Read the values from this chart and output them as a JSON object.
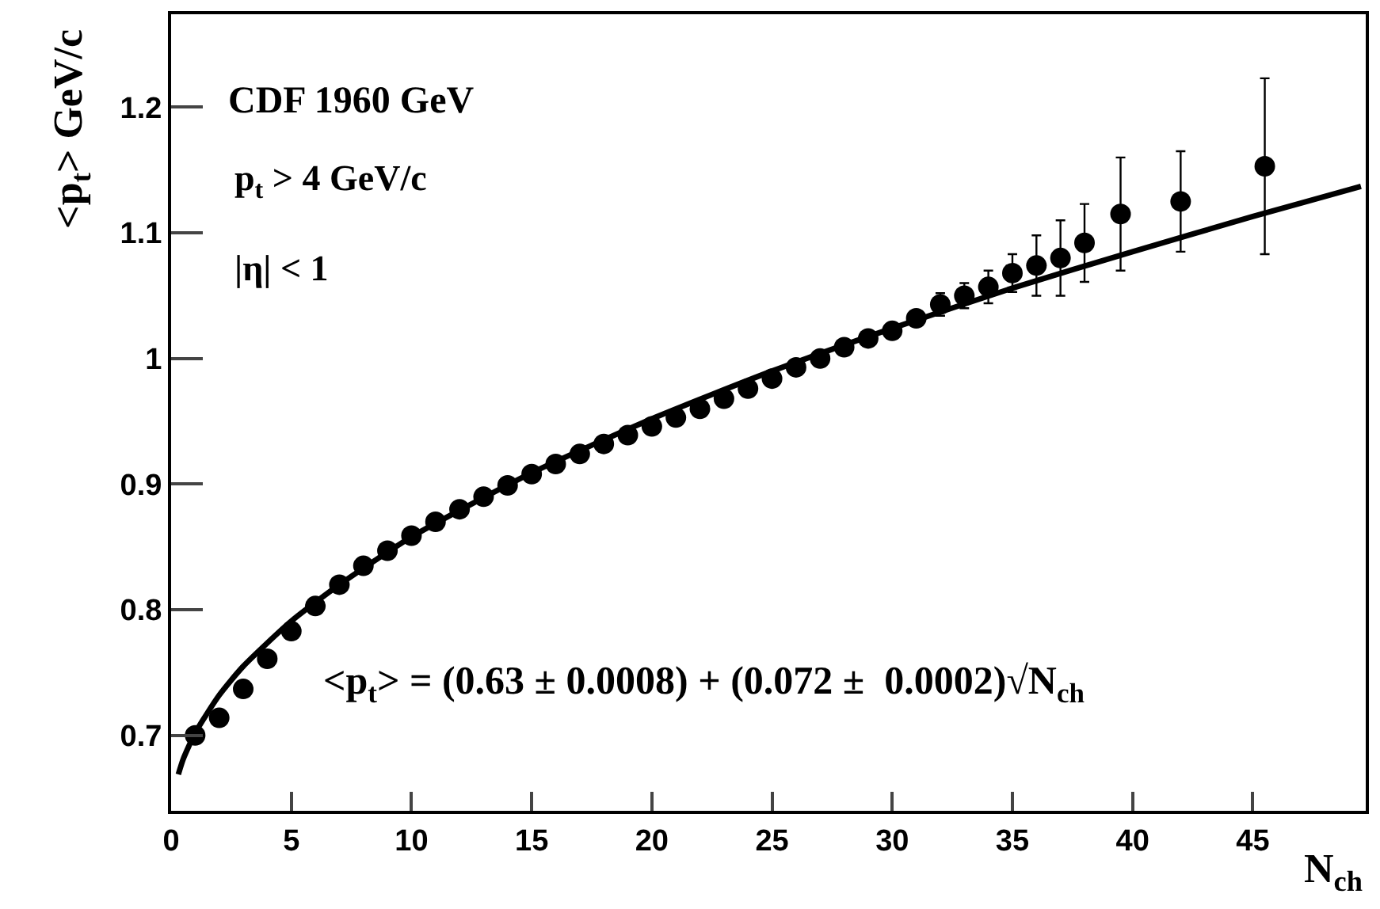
{
  "chart_data": {
    "type": "scatter",
    "xlabel": "N$_{ch}$",
    "ylabel": "<p$_{t}$> GeV/c",
    "annotations": [
      "CDF 1960 GeV",
      "p$_{t}$ > 4 GeV/c",
      "|η| < 1",
      "<p$_{t}$> = (0.63 ± 0.0008) + (0.072 ±  0.0002)√N$_{ch}$"
    ],
    "series": [
      {
        "color": "#000000",
        "marker": "circle",
        "x": [
          1,
          2,
          3,
          4,
          5,
          6,
          7,
          8,
          9,
          10,
          11,
          12,
          13,
          14,
          15,
          16,
          17,
          18,
          19,
          20,
          21,
          22,
          23,
          24,
          25,
          26,
          27,
          28,
          29,
          30,
          31,
          32,
          33,
          34,
          35,
          36,
          37,
          38,
          39.5,
          42,
          45.5
        ],
        "values": [
          0.7,
          0.714,
          0.737,
          0.761,
          0.783,
          0.803,
          0.82,
          0.835,
          0.847,
          0.859,
          0.87,
          0.88,
          0.89,
          0.899,
          0.908,
          0.916,
          0.924,
          0.932,
          0.939,
          0.946,
          0.953,
          0.96,
          0.968,
          0.976,
          0.984,
          0.993,
          1.0,
          1.009,
          1.016,
          1.022,
          1.032,
          1.043,
          1.05,
          1.057,
          1.068,
          1.074,
          1.08,
          1.092,
          1.115,
          1.125,
          1.153
        ],
        "errors": [
          null,
          null,
          null,
          null,
          null,
          null,
          null,
          null,
          null,
          null,
          null,
          null,
          null,
          null,
          null,
          null,
          null,
          null,
          null,
          null,
          null,
          null,
          null,
          null,
          null,
          null,
          null,
          null,
          null,
          null,
          null,
          0.009,
          0.01,
          0.013,
          0.015,
          0.024,
          0.03,
          0.031,
          0.045,
          0.04,
          0.07
        ]
      },
      {
        "type": "line",
        "color": "#000000",
        "line_style": "solid",
        "x": [
          0.3,
          0.5,
          1,
          2,
          3,
          5,
          7,
          10,
          15,
          20,
          25,
          30,
          35,
          40,
          45,
          49.5
        ],
        "values": [
          0.669,
          0.681,
          0.702,
          0.732,
          0.755,
          0.791,
          0.82,
          0.858,
          0.909,
          0.952,
          0.99,
          1.024,
          1.056,
          1.085,
          1.113,
          1.137
        ]
      }
    ],
    "xlim": [
      0,
      49.7
    ],
    "ylim": [
      0.64,
      1.274
    ],
    "xticks": [
      0,
      5,
      10,
      15,
      20,
      25,
      30,
      35,
      40,
      45
    ],
    "yticks": [
      0.7,
      0.8,
      0.9,
      1,
      1.1,
      1.2
    ]
  }
}
